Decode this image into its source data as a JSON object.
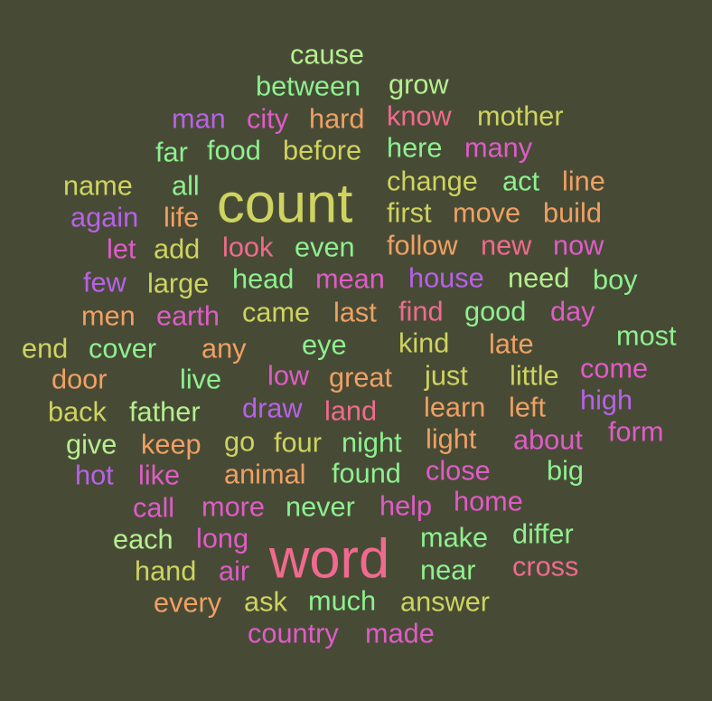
{
  "background": "#474b36",
  "palette": {
    "green": "#8ef08f",
    "lime": "#b6ef8f",
    "olive": "#cfd35f",
    "orange": "#f0a063",
    "pink": "#f06a8e",
    "magenta": "#e05bc8",
    "purple": "#b861e8"
  },
  "words": [
    {
      "text": "cause",
      "color": "lime"
    },
    {
      "text": "between",
      "color": "green"
    },
    {
      "text": "grow",
      "color": "lime"
    },
    {
      "text": "man",
      "color": "purple"
    },
    {
      "text": "city",
      "color": "magenta"
    },
    {
      "text": "hard",
      "color": "orange"
    },
    {
      "text": "know",
      "color": "pink"
    },
    {
      "text": "mother",
      "color": "olive"
    },
    {
      "text": "far",
      "color": "green"
    },
    {
      "text": "food",
      "color": "green"
    },
    {
      "text": "before",
      "color": "olive"
    },
    {
      "text": "here",
      "color": "green"
    },
    {
      "text": "many",
      "color": "magenta"
    },
    {
      "text": "name",
      "color": "olive"
    },
    {
      "text": "all",
      "color": "green"
    },
    {
      "text": "count",
      "color": "olive"
    },
    {
      "text": "change",
      "color": "olive"
    },
    {
      "text": "act",
      "color": "green"
    },
    {
      "text": "line",
      "color": "orange"
    },
    {
      "text": "again",
      "color": "purple"
    },
    {
      "text": "life",
      "color": "orange"
    },
    {
      "text": "first",
      "color": "olive"
    },
    {
      "text": "move",
      "color": "orange"
    },
    {
      "text": "build",
      "color": "orange"
    },
    {
      "text": "let",
      "color": "magenta"
    },
    {
      "text": "add",
      "color": "olive"
    },
    {
      "text": "look",
      "color": "pink"
    },
    {
      "text": "even",
      "color": "green"
    },
    {
      "text": "follow",
      "color": "orange"
    },
    {
      "text": "new",
      "color": "pink"
    },
    {
      "text": "now",
      "color": "magenta"
    },
    {
      "text": "few",
      "color": "purple"
    },
    {
      "text": "large",
      "color": "olive"
    },
    {
      "text": "head",
      "color": "green"
    },
    {
      "text": "mean",
      "color": "magenta"
    },
    {
      "text": "house",
      "color": "purple"
    },
    {
      "text": "need",
      "color": "lime"
    },
    {
      "text": "boy",
      "color": "green"
    },
    {
      "text": "men",
      "color": "orange"
    },
    {
      "text": "earth",
      "color": "magenta"
    },
    {
      "text": "came",
      "color": "olive"
    },
    {
      "text": "last",
      "color": "orange"
    },
    {
      "text": "find",
      "color": "pink"
    },
    {
      "text": "good",
      "color": "green"
    },
    {
      "text": "day",
      "color": "magenta"
    },
    {
      "text": "most",
      "color": "green"
    },
    {
      "text": "end",
      "color": "olive"
    },
    {
      "text": "cover",
      "color": "green"
    },
    {
      "text": "any",
      "color": "orange"
    },
    {
      "text": "eye",
      "color": "green"
    },
    {
      "text": "kind",
      "color": "olive"
    },
    {
      "text": "late",
      "color": "orange"
    },
    {
      "text": "door",
      "color": "orange"
    },
    {
      "text": "live",
      "color": "green"
    },
    {
      "text": "low",
      "color": "magenta"
    },
    {
      "text": "great",
      "color": "orange"
    },
    {
      "text": "just",
      "color": "olive"
    },
    {
      "text": "little",
      "color": "olive"
    },
    {
      "text": "come",
      "color": "magenta"
    },
    {
      "text": "back",
      "color": "olive"
    },
    {
      "text": "father",
      "color": "lime"
    },
    {
      "text": "draw",
      "color": "purple"
    },
    {
      "text": "land",
      "color": "pink"
    },
    {
      "text": "learn",
      "color": "orange"
    },
    {
      "text": "left",
      "color": "orange"
    },
    {
      "text": "high",
      "color": "purple"
    },
    {
      "text": "form",
      "color": "magenta"
    },
    {
      "text": "give",
      "color": "lime"
    },
    {
      "text": "keep",
      "color": "orange"
    },
    {
      "text": "go",
      "color": "olive"
    },
    {
      "text": "four",
      "color": "olive"
    },
    {
      "text": "night",
      "color": "green"
    },
    {
      "text": "light",
      "color": "orange"
    },
    {
      "text": "about",
      "color": "magenta"
    },
    {
      "text": "hot",
      "color": "purple"
    },
    {
      "text": "like",
      "color": "magenta"
    },
    {
      "text": "animal",
      "color": "orange"
    },
    {
      "text": "found",
      "color": "green"
    },
    {
      "text": "close",
      "color": "magenta"
    },
    {
      "text": "big",
      "color": "green"
    },
    {
      "text": "call",
      "color": "magenta"
    },
    {
      "text": "more",
      "color": "magenta"
    },
    {
      "text": "never",
      "color": "green"
    },
    {
      "text": "help",
      "color": "magenta"
    },
    {
      "text": "home",
      "color": "magenta"
    },
    {
      "text": "each",
      "color": "lime"
    },
    {
      "text": "long",
      "color": "magenta"
    },
    {
      "text": "word",
      "color": "pink"
    },
    {
      "text": "make",
      "color": "green"
    },
    {
      "text": "differ",
      "color": "green"
    },
    {
      "text": "hand",
      "color": "olive"
    },
    {
      "text": "air",
      "color": "magenta"
    },
    {
      "text": "near",
      "color": "green"
    },
    {
      "text": "cross",
      "color": "pink"
    },
    {
      "text": "every",
      "color": "orange"
    },
    {
      "text": "ask",
      "color": "olive"
    },
    {
      "text": "much",
      "color": "green"
    },
    {
      "text": "answer",
      "color": "olive"
    },
    {
      "text": "country",
      "color": "magenta"
    },
    {
      "text": "made",
      "color": "magenta"
    }
  ]
}
